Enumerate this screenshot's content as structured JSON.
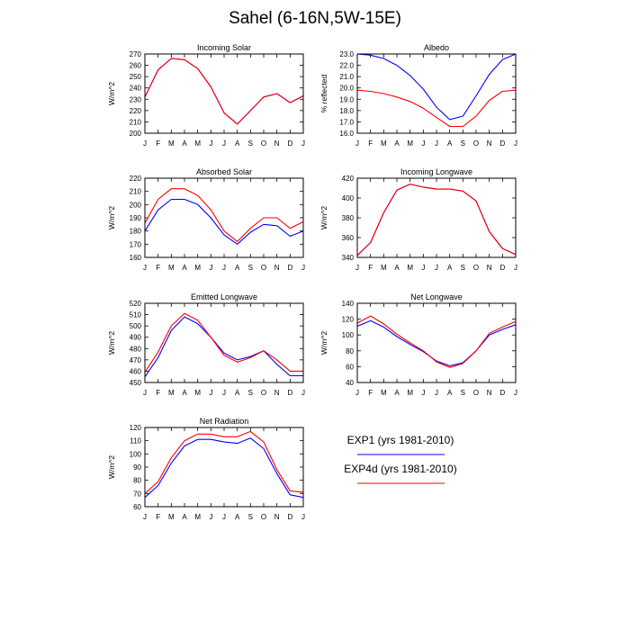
{
  "title": "Sahel (6-16N,5W-15E)",
  "colors": {
    "exp1": "#0000ff",
    "exp4d": "#ff0000"
  },
  "legend": [
    {
      "name": "EXP1 (yrs 1981-2010)",
      "color": "#0000ff"
    },
    {
      "name": "EXP4d (yrs 1981-2010)",
      "color": "#ff0000"
    }
  ],
  "chart_data": [
    {
      "type": "line",
      "title": "Incoming Solar",
      "ylabel": "W/m^2",
      "categories": [
        "J",
        "F",
        "M",
        "A",
        "M",
        "J",
        "J",
        "A",
        "S",
        "O",
        "N",
        "D",
        "J"
      ],
      "ylim": [
        200,
        270
      ],
      "yticks": [
        "200",
        "210",
        "220",
        "230",
        "240",
        "250",
        "260",
        "270"
      ],
      "series": [
        {
          "values": [
            232,
            256,
            266,
            265,
            257,
            241,
            218,
            208,
            220,
            232,
            235,
            227,
            233
          ]
        },
        {
          "values": [
            232,
            256,
            266,
            265,
            257,
            241,
            218,
            208,
            220,
            232,
            235,
            227,
            233
          ]
        }
      ]
    },
    {
      "type": "line",
      "title": "Albedo",
      "ylabel": "% reflected",
      "categories": [
        "J",
        "F",
        "M",
        "A",
        "M",
        "J",
        "J",
        "A",
        "S",
        "O",
        "N",
        "D",
        "J"
      ],
      "ylim": [
        16,
        23
      ],
      "yticks": [
        "16.0",
        "17.0",
        "18.0",
        "19.0",
        "20.0",
        "21.0",
        "22.0",
        "23.0"
      ],
      "series": [
        {
          "values": [
            23.0,
            22.9,
            22.6,
            22.0,
            21.1,
            19.9,
            18.3,
            17.2,
            17.5,
            19.3,
            21.2,
            22.5,
            23.0
          ]
        },
        {
          "values": [
            19.8,
            19.7,
            19.5,
            19.2,
            18.8,
            18.2,
            17.4,
            16.6,
            16.6,
            17.5,
            18.9,
            19.7,
            19.8
          ]
        }
      ]
    },
    {
      "type": "line",
      "title": "Absorbed Solar",
      "ylabel": "W/m^2",
      "categories": [
        "J",
        "F",
        "M",
        "A",
        "M",
        "J",
        "J",
        "A",
        "S",
        "O",
        "N",
        "D",
        "J"
      ],
      "ylim": [
        160,
        220
      ],
      "yticks": [
        "160",
        "170",
        "180",
        "190",
        "200",
        "210",
        "220"
      ],
      "series": [
        {
          "values": [
            180,
            196,
            204,
            204,
            200,
            190,
            177,
            170,
            179,
            185,
            184,
            176,
            180
          ]
        },
        {
          "values": [
            186,
            204,
            212,
            212,
            207,
            196,
            180,
            172,
            182,
            190,
            190,
            182,
            187
          ]
        }
      ]
    },
    {
      "type": "line",
      "title": "Incoming Longwave",
      "ylabel": "W/m^2",
      "categories": [
        "J",
        "F",
        "M",
        "A",
        "M",
        "J",
        "J",
        "A",
        "S",
        "O",
        "N",
        "D",
        "J"
      ],
      "ylim": [
        340,
        420
      ],
      "yticks": [
        "340",
        "360",
        "380",
        "400",
        "420"
      ],
      "series": [
        {
          "values": [
            342,
            355,
            385,
            408,
            414,
            411,
            409,
            409,
            407,
            397,
            366,
            349,
            343
          ]
        },
        {
          "values": [
            342,
            355,
            385,
            408,
            414,
            411,
            409,
            409,
            407,
            397,
            366,
            349,
            343
          ]
        }
      ]
    },
    {
      "type": "line",
      "title": "Emitted Longwave",
      "ylabel": "W/m^2",
      "categories": [
        "J",
        "F",
        "M",
        "A",
        "M",
        "J",
        "J",
        "A",
        "S",
        "O",
        "N",
        "D",
        "J"
      ],
      "ylim": [
        450,
        520
      ],
      "yticks": [
        "450",
        "460",
        "470",
        "480",
        "490",
        "500",
        "510",
        "520"
      ],
      "series": [
        {
          "values": [
            455,
            472,
            496,
            508,
            502,
            490,
            476,
            470,
            473,
            478,
            466,
            456,
            456
          ]
        },
        {
          "values": [
            459,
            477,
            500,
            511,
            505,
            490,
            474,
            468,
            472,
            478,
            470,
            460,
            460
          ]
        }
      ]
    },
    {
      "type": "line",
      "title": "Net Longwave",
      "ylabel": "W/m^2",
      "categories": [
        "J",
        "F",
        "M",
        "A",
        "M",
        "J",
        "J",
        "A",
        "S",
        "O",
        "N",
        "D",
        "J"
      ],
      "ylim": [
        40,
        140
      ],
      "yticks": [
        "40",
        "60",
        "80",
        "100",
        "120",
        "140"
      ],
      "series": [
        {
          "values": [
            111,
            118,
            110,
            98,
            88,
            79,
            67,
            61,
            65,
            80,
            100,
            107,
            113
          ]
        },
        {
          "values": [
            115,
            124,
            114,
            101,
            90,
            80,
            66,
            59,
            64,
            80,
            102,
            110,
            117
          ]
        }
      ]
    },
    {
      "type": "line",
      "title": "Net Radiation",
      "ylabel": "W/m^2",
      "categories": [
        "J",
        "F",
        "M",
        "A",
        "M",
        "J",
        "J",
        "A",
        "S",
        "O",
        "N",
        "D",
        "J"
      ],
      "ylim": [
        60,
        120
      ],
      "yticks": [
        "60",
        "70",
        "80",
        "90",
        "100",
        "110",
        "120"
      ],
      "series": [
        {
          "values": [
            67,
            76,
            93,
            106,
            111,
            111,
            109,
            108,
            112,
            104,
            85,
            69,
            67
          ]
        },
        {
          "values": [
            70,
            79,
            97,
            110,
            115,
            115,
            113,
            113,
            117,
            109,
            88,
            72,
            71
          ]
        }
      ]
    }
  ]
}
